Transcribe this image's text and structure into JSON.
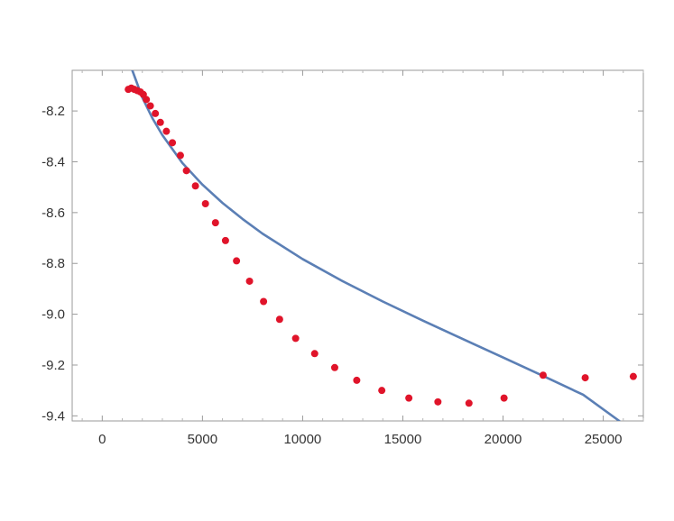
{
  "chart_data": {
    "type": "scatter",
    "title": "",
    "xlabel": "",
    "ylabel": "",
    "xlim": [
      -1500,
      27000
    ],
    "ylim": [
      -9.42,
      -8.04
    ],
    "grid": false,
    "x_ticks": [
      0,
      5000,
      10000,
      15000,
      20000,
      25000
    ],
    "x_tick_labels": [
      "0",
      "5000",
      "10000",
      "15000",
      "20000",
      "25000"
    ],
    "y_ticks": [
      -8.2,
      -8.4,
      -8.6,
      -8.8,
      -9.0,
      -9.2,
      -9.4
    ],
    "y_tick_labels": [
      "-8.2",
      "-8.4",
      "-8.6",
      "-8.8",
      "-9.0",
      "-9.2",
      "-9.4"
    ],
    "series": [
      {
        "kind": "points",
        "color": "#e0142a",
        "x": [
          1300,
          1450,
          1600,
          1750,
          1900,
          2050,
          2200,
          2400,
          2650,
          2900,
          3200,
          3500,
          3900,
          4200,
          4650,
          5150,
          5650,
          6150,
          6700,
          7350,
          8050,
          8850,
          9650,
          10600,
          11600,
          12700,
          13950,
          15300,
          16750,
          18300,
          20050,
          22000,
          24100,
          26500
        ],
        "y": [
          -8.115,
          -8.11,
          -8.115,
          -8.12,
          -8.125,
          -8.135,
          -8.155,
          -8.18,
          -8.21,
          -8.245,
          -8.28,
          -8.325,
          -8.375,
          -8.435,
          -8.495,
          -8.565,
          -8.64,
          -8.71,
          -8.79,
          -8.87,
          -8.95,
          -9.02,
          -9.095,
          -9.155,
          -9.21,
          -9.26,
          -9.3,
          -9.33,
          -9.345,
          -9.35,
          -9.33,
          -9.24,
          -9.25,
          -9.245
        ]
      },
      {
        "kind": "curve",
        "color": "#5b7fb5",
        "x": [
          1500,
          2000,
          2500,
          3000,
          4000,
          5000,
          6000,
          7000,
          8000,
          10000,
          12000,
          14000,
          16000,
          18000,
          20000,
          22000,
          24000,
          25800
        ],
        "y": [
          -8.04,
          -8.147,
          -8.228,
          -8.295,
          -8.405,
          -8.49,
          -8.562,
          -8.625,
          -8.683,
          -8.783,
          -8.87,
          -8.95,
          -9.025,
          -9.098,
          -9.17,
          -9.243,
          -9.317,
          -9.42
        ]
      }
    ]
  }
}
